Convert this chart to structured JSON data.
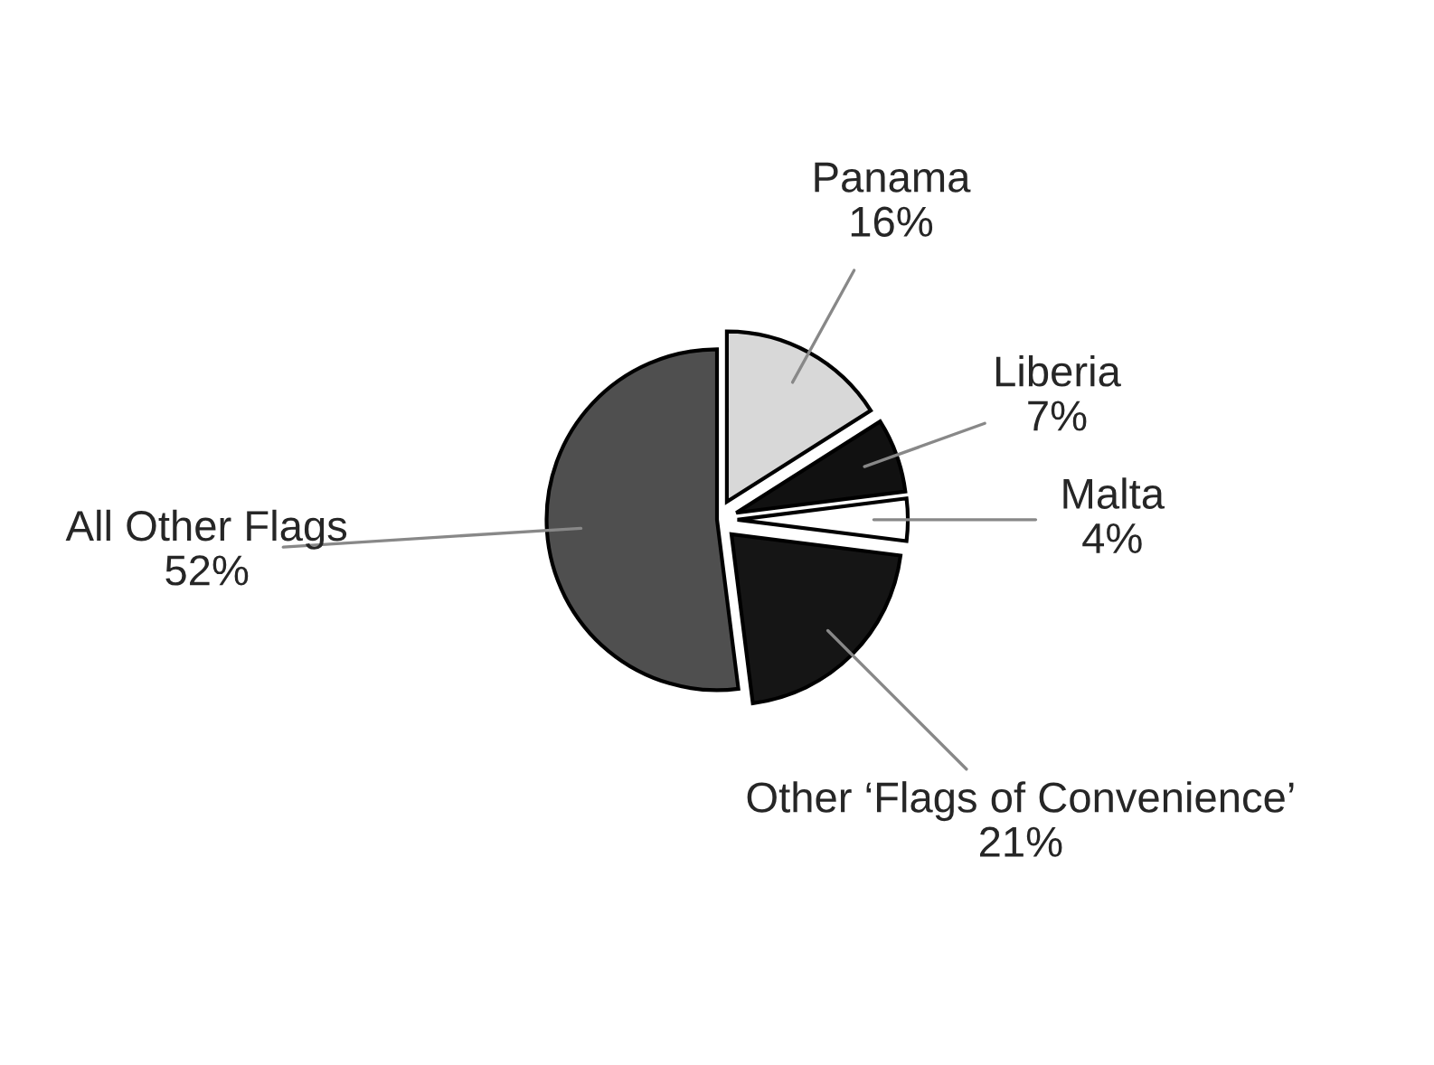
{
  "chart_data": {
    "type": "pie",
    "categories": [
      "Panama",
      "Liberia",
      "Malta",
      "Other ‘Flags of Convenience’",
      "All Other Flags"
    ],
    "values": [
      16,
      7,
      4,
      21,
      52
    ],
    "value_labels": [
      "16%",
      "7%",
      "4%",
      "21%",
      "52%"
    ],
    "colors": [
      "#d8d8d8",
      "#111111",
      "#ffffff",
      "#151515",
      "#4f4f4f"
    ]
  }
}
